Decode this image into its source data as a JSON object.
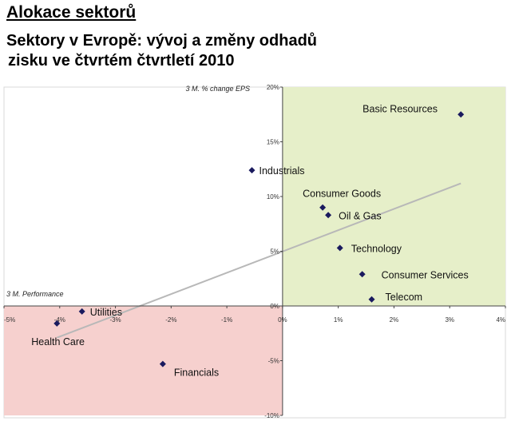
{
  "page": {
    "title": "Alokace sektorů",
    "subtitle_line1": "Sektory v Evropě: vývoj a změny odhadů",
    "subtitle_line2": "zisku ve čtvrtém čtvrtletí 2010"
  },
  "colors": {
    "quadrant_upper_right": "#e6efc9",
    "quadrant_lower_left": "#f6d0ce",
    "point": "#1a1a5e",
    "trendline": "#b8b8b8",
    "gridline": "#cfcfcf"
  },
  "chart_data": {
    "type": "scatter",
    "xlabel": "3 M. Performance",
    "ylabel": "3 M. % change EPS",
    "xlim": [
      -5,
      4
    ],
    "ylim": [
      -10,
      20
    ],
    "x_ticks": [
      "-5%",
      "-4%",
      "-3%",
      "-2%",
      "-1%",
      "0%",
      "1%",
      "2%",
      "3%",
      "4%"
    ],
    "y_ticks": [
      "-10%",
      "-5%",
      "0%",
      "5%",
      "10%",
      "15%",
      "20%"
    ],
    "points": [
      {
        "label": "Basic Resources",
        "x": 3.2,
        "y": 17.5
      },
      {
        "label": "Industrials",
        "x": -0.55,
        "y": 12.4
      },
      {
        "label": "Consumer Goods",
        "x": 0.72,
        "y": 9.0
      },
      {
        "label": "Oil & Gas",
        "x": 0.82,
        "y": 8.3
      },
      {
        "label": "Technology",
        "x": 1.03,
        "y": 5.3
      },
      {
        "label": "Consumer Services",
        "x": 1.43,
        "y": 2.9
      },
      {
        "label": "Telecom",
        "x": 1.6,
        "y": 0.6
      },
      {
        "label": "Utilities",
        "x": -3.6,
        "y": -0.5
      },
      {
        "label": "Health Care",
        "x": -4.05,
        "y": -1.6
      },
      {
        "label": "Financials",
        "x": -2.15,
        "y": -5.3
      }
    ],
    "trendline": {
      "x": [
        -4.05,
        3.2
      ],
      "y": [
        -2.9,
        11.2
      ]
    },
    "grid": false,
    "legend": "none"
  }
}
